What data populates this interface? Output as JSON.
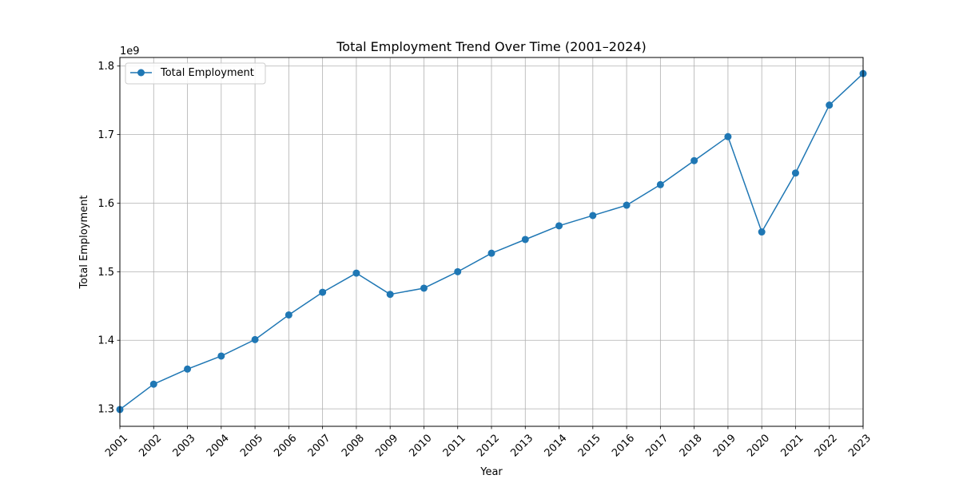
{
  "chart_data": {
    "type": "line",
    "title": "Total Employment Trend Over Time (2001–2024)",
    "xlabel": "Year",
    "ylabel": "Total Employment",
    "y_offset_label": "1e9",
    "x": [
      2001,
      2002,
      2003,
      2004,
      2005,
      2006,
      2007,
      2008,
      2009,
      2010,
      2011,
      2012,
      2013,
      2014,
      2015,
      2016,
      2017,
      2018,
      2019,
      2020,
      2021,
      2022,
      2023
    ],
    "x_tick_labels": [
      "2001",
      "2002",
      "2003",
      "2004",
      "2005",
      "2006",
      "2007",
      "2008",
      "2009",
      "2010",
      "2011",
      "2012",
      "2013",
      "2014",
      "2015",
      "2016",
      "2017",
      "2018",
      "2019",
      "2020",
      "2021",
      "2022",
      "2023"
    ],
    "y_ticks": [
      1.3,
      1.4,
      1.5,
      1.6,
      1.7,
      1.8
    ],
    "y_tick_labels": [
      "1.3",
      "1.4",
      "1.5",
      "1.6",
      "1.7",
      "1.8"
    ],
    "xlim": [
      2001,
      2023
    ],
    "ylim": [
      1.2745,
      1.8125
    ],
    "grid": true,
    "legend_position": "top-left",
    "series": [
      {
        "name": "Total Employment",
        "color": "#1f77b4",
        "marker": "circle",
        "values": [
          1.299,
          1.336,
          1.358,
          1.377,
          1.401,
          1.437,
          1.47,
          1.498,
          1.467,
          1.476,
          1.5,
          1.527,
          1.547,
          1.567,
          1.582,
          1.597,
          1.627,
          1.662,
          1.697,
          1.558,
          1.644,
          1.743,
          1.789
        ]
      }
    ]
  }
}
